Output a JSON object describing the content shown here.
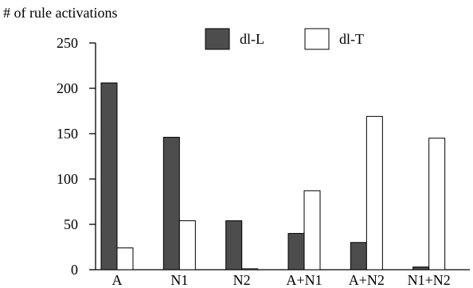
{
  "chart_data": {
    "type": "bar",
    "title": "",
    "ylabel": "# of rule activations",
    "xlabel": "",
    "categories": [
      "A",
      "N1",
      "N2",
      "A+N1",
      "A+N2",
      "N1+N2"
    ],
    "series": [
      {
        "name": "dl-L",
        "color": "#4d4d4d",
        "values": [
          206,
          146,
          54,
          40,
          30,
          3
        ]
      },
      {
        "name": "dl-T",
        "color": "#ffffff",
        "values": [
          24,
          54,
          1,
          87,
          169,
          145
        ]
      }
    ],
    "ylim": [
      0,
      250
    ],
    "yticks": [
      0,
      50,
      100,
      150,
      200,
      250
    ],
    "grid": false,
    "legend": "top-center"
  }
}
